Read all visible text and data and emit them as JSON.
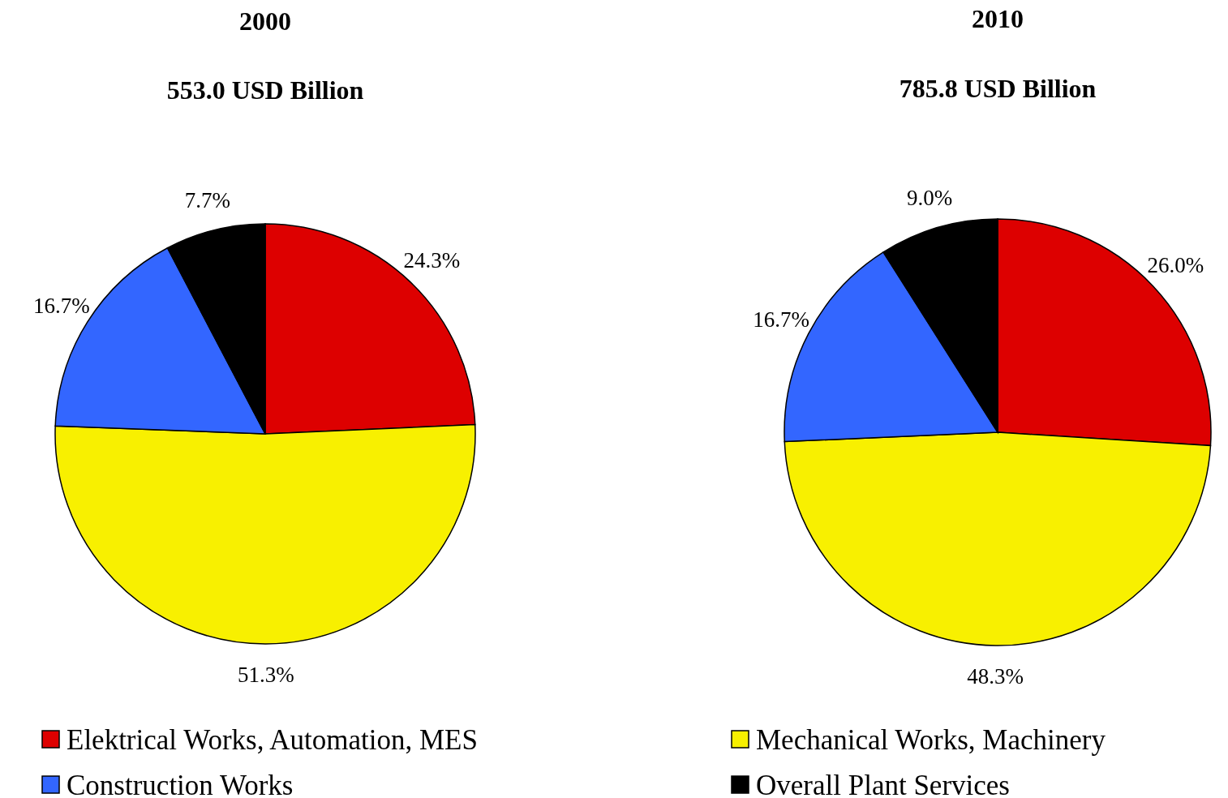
{
  "chart_data": [
    {
      "type": "pie",
      "title": "2000",
      "subtitle": "553.0 USD Billion",
      "categories": [
        "Elektrical Works, Automation, MES",
        "Mechanical Works, Machinery",
        "Construction Works",
        "Overall Plant Services"
      ],
      "values": [
        24.3,
        51.3,
        16.7,
        7.7
      ],
      "value_labels": [
        "24.3%",
        "51.3%",
        "16.7%",
        "7.7%"
      ],
      "colors": [
        "#dd0000",
        "#f8f000",
        "#3366ff",
        "#000000"
      ],
      "legend": "bottom"
    },
    {
      "type": "pie",
      "title": "2010",
      "subtitle": "785.8 USD Billion",
      "categories": [
        null,
        null,
        null,
        null
      ],
      "values": [
        26.0,
        48.3,
        16.7,
        9.0
      ],
      "value_labels": [
        "26.0%",
        "48.3%",
        "16.7%",
        "9.0%"
      ],
      "colors": [
        "#dd0000",
        "#f8f000",
        "#3366ff",
        "#000000"
      ]
    }
  ]
}
